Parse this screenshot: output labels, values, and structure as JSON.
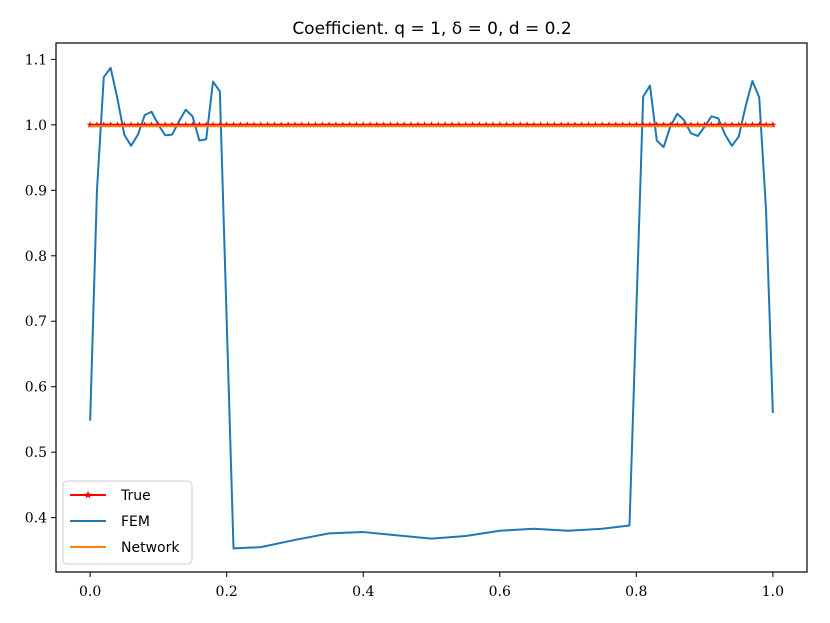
{
  "chart_data": {
    "type": "line",
    "title": "Coefficient. q = 1, δ = 0, d = 0.2",
    "xlabel": "",
    "ylabel": "",
    "xlim": [
      -0.05,
      1.05
    ],
    "ylim": [
      0.317,
      1.125
    ],
    "xticks": [
      0.0,
      0.2,
      0.4,
      0.6,
      0.8,
      1.0
    ],
    "xtick_labels": [
      "0.0",
      "0.2",
      "0.4",
      "0.6",
      "0.8",
      "1.0"
    ],
    "yticks": [
      0.4,
      0.5,
      0.6,
      0.7,
      0.8,
      0.9,
      1.0,
      1.1
    ],
    "ytick_labels": [
      "0.4",
      "0.5",
      "0.6",
      "0.7",
      "0.8",
      "0.9",
      "1.0",
      "1.1"
    ],
    "grid": false,
    "legend_position": "lower-left",
    "series": [
      {
        "name": "True",
        "color": "#ff0000",
        "marker": "star",
        "x": [
          0.0,
          1.0
        ],
        "y": [
          1.0,
          1.0
        ]
      },
      {
        "name": "FEM",
        "color": "#1f77b4",
        "x": [
          0.0,
          0.01,
          0.02,
          0.03,
          0.04,
          0.05,
          0.06,
          0.07,
          0.08,
          0.09,
          0.1,
          0.11,
          0.12,
          0.13,
          0.14,
          0.15,
          0.16,
          0.17,
          0.18,
          0.19,
          0.21,
          0.25,
          0.3,
          0.35,
          0.4,
          0.45,
          0.5,
          0.55,
          0.6,
          0.65,
          0.7,
          0.75,
          0.79,
          0.81,
          0.82,
          0.83,
          0.84,
          0.85,
          0.86,
          0.87,
          0.88,
          0.89,
          0.9,
          0.91,
          0.92,
          0.93,
          0.94,
          0.95,
          0.96,
          0.97,
          0.98,
          0.99,
          1.0
        ],
        "y": [
          0.548,
          0.9,
          1.073,
          1.087,
          1.04,
          0.985,
          0.968,
          0.985,
          1.015,
          1.02,
          1.0,
          0.984,
          0.985,
          1.005,
          1.023,
          1.013,
          0.976,
          0.978,
          1.066,
          1.051,
          0.353,
          0.355,
          0.366,
          0.376,
          0.378,
          0.373,
          0.368,
          0.372,
          0.38,
          0.383,
          0.38,
          0.383,
          0.388,
          1.043,
          1.06,
          0.976,
          0.966,
          0.998,
          1.017,
          1.007,
          0.987,
          0.983,
          0.997,
          1.013,
          1.01,
          0.985,
          0.968,
          0.982,
          1.028,
          1.067,
          1.042,
          0.87,
          0.56
        ]
      },
      {
        "name": "Network",
        "color": "#ff7f0e",
        "x": [
          0.0,
          1.0
        ],
        "y": [
          0.998,
          0.998
        ]
      }
    ]
  }
}
